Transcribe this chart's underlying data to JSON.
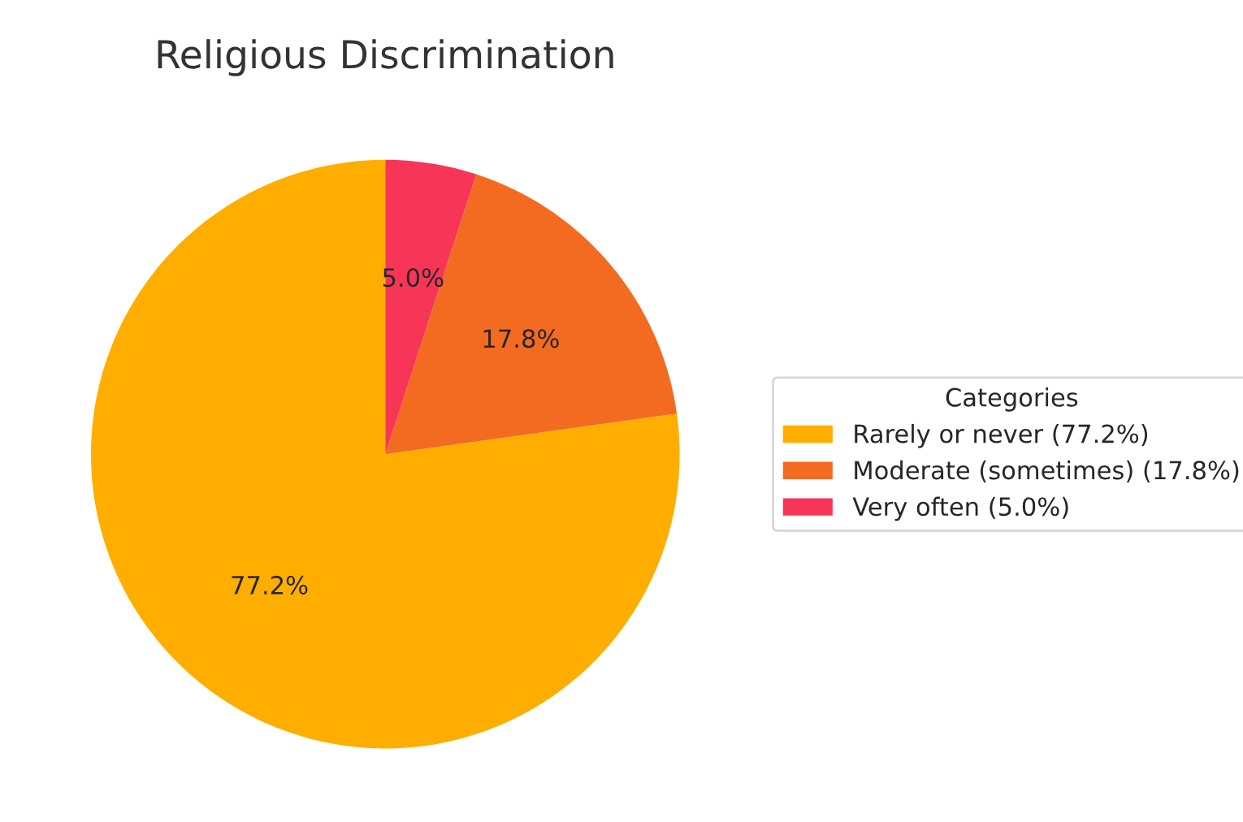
{
  "chart_data": {
    "type": "pie",
    "title": "Religious Discrimination",
    "legend_title": "Categories",
    "legend": "right",
    "categories": [
      "Rarely or never (77.2%)",
      "Moderate (sometimes) (17.8%)",
      "Very often (5.0%)"
    ],
    "values": [
      77.2,
      17.8,
      5.0
    ],
    "colors": [
      "#ffae00",
      "#f26b21",
      "#f73657"
    ],
    "value_labels": [
      "77.2%",
      "17.8%",
      "5.0%"
    ]
  }
}
